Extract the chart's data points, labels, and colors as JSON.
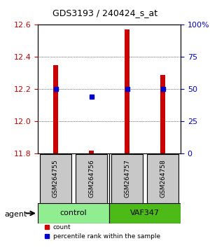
{
  "title": "GDS3193 / 240424_s_at",
  "samples": [
    "GSM264755",
    "GSM264756",
    "GSM264757",
    "GSM264758"
  ],
  "groups": [
    "control",
    "control",
    "VAF347",
    "VAF347"
  ],
  "group_labels": [
    "control",
    "VAF347"
  ],
  "group_colors": [
    "#90EE90",
    "#4CBB4C"
  ],
  "ylim_left": [
    11.8,
    12.6
  ],
  "ylim_right": [
    0,
    100
  ],
  "yticks_left": [
    11.8,
    12.0,
    12.2,
    12.4,
    12.6
  ],
  "yticks_right": [
    0,
    25,
    50,
    75,
    100
  ],
  "ytick_labels_right": [
    "0",
    "25",
    "50",
    "75",
    "100%"
  ],
  "count_values": [
    12.35,
    11.82,
    12.57,
    12.29
  ],
  "percentile_values": [
    50,
    44,
    50,
    50
  ],
  "bar_color": "#CC0000",
  "dot_color": "#0000CC",
  "bar_width": 0.12,
  "bar_bottom": 11.8,
  "legend_red_label": "count",
  "legend_blue_label": "percentile rank within the sample",
  "agent_label": "agent",
  "xlabel_color_left": "#CC0000",
  "xlabel_color_right": "#0000CC"
}
